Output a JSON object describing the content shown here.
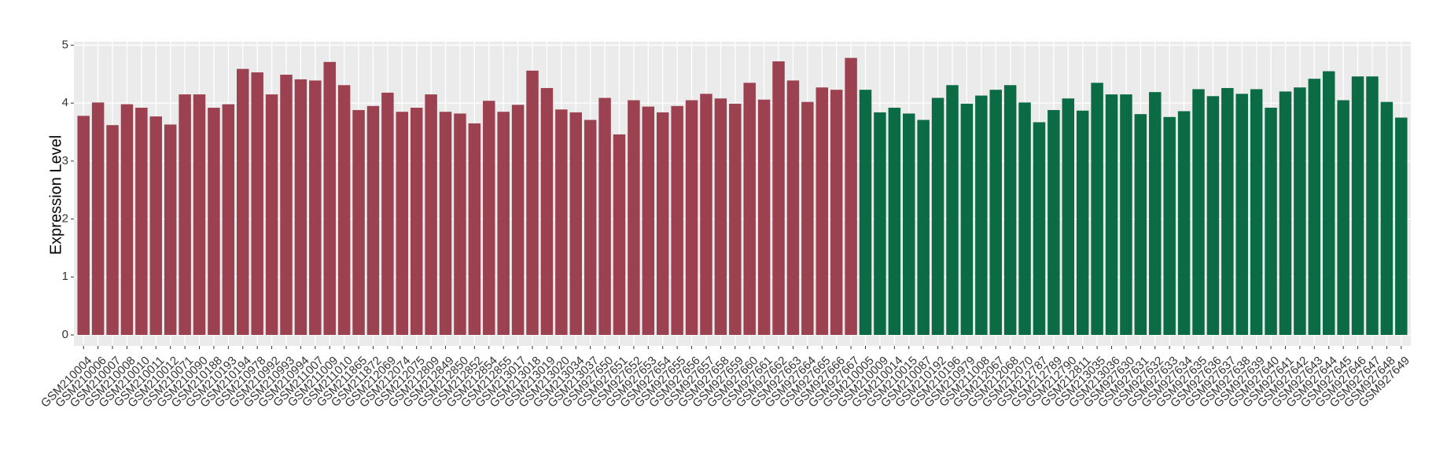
{
  "chart_data": {
    "type": "bar",
    "y_label": "Expression Level",
    "categories": [
      "GSM210004",
      "GSM210006",
      "GSM210007",
      "GSM210008",
      "GSM210010",
      "GSM210011",
      "GSM210012",
      "GSM210071",
      "GSM210090",
      "GSM210188",
      "GSM210193",
      "GSM210194",
      "GSM210978",
      "GSM210992",
      "GSM210993",
      "GSM210994",
      "GSM211007",
      "GSM211009",
      "GSM211010",
      "GSM211865",
      "GSM211872",
      "GSM212069",
      "GSM212074",
      "GSM212075",
      "GSM212809",
      "GSM212849",
      "GSM212850",
      "GSM212852",
      "GSM212854",
      "GSM212855",
      "GSM213017",
      "GSM213018",
      "GSM213019",
      "GSM213020",
      "GSM213034",
      "GSM213037",
      "GSM927650",
      "GSM927651",
      "GSM927652",
      "GSM927653",
      "GSM927654",
      "GSM927655",
      "GSM927656",
      "GSM927657",
      "GSM927658",
      "GSM927659",
      "GSM927660",
      "GSM927661",
      "GSM927662",
      "GSM927663",
      "GSM927664",
      "GSM927665",
      "GSM927666",
      "GSM927667",
      "GSM210005",
      "GSM210009",
      "GSM210014",
      "GSM210015",
      "GSM210087",
      "GSM210192",
      "GSM210196",
      "GSM210979",
      "GSM211008",
      "GSM212067",
      "GSM212068",
      "GSM212070",
      "GSM212787",
      "GSM212789",
      "GSM212790",
      "GSM212811",
      "GSM213035",
      "GSM213036",
      "GSM927630",
      "GSM927631",
      "GSM927632",
      "GSM927633",
      "GSM927634",
      "GSM927635",
      "GSM927636",
      "GSM927637",
      "GSM927638",
      "GSM927639",
      "GSM927640",
      "GSM927641",
      "GSM927642",
      "GSM927643",
      "GSM927644",
      "GSM927645",
      "GSM927646",
      "GSM927647",
      "GSM927648",
      "GSM927649"
    ],
    "values": [
      3.78,
      4.01,
      3.62,
      3.98,
      3.92,
      3.77,
      3.63,
      4.15,
      4.15,
      3.92,
      3.98,
      4.59,
      4.53,
      4.15,
      4.49,
      4.41,
      4.39,
      4.71,
      4.31,
      3.88,
      3.95,
      4.18,
      3.85,
      3.92,
      4.15,
      3.85,
      3.82,
      3.65,
      4.04,
      3.85,
      3.97,
      4.56,
      4.26,
      3.89,
      3.84,
      3.71,
      4.09,
      3.46,
      4.05,
      3.94,
      3.84,
      3.95,
      4.05,
      4.16,
      4.08,
      3.99,
      4.35,
      4.06,
      4.72,
      4.39,
      4.02,
      4.27,
      4.23,
      4.78,
      4.23,
      3.84,
      3.92,
      3.82,
      3.71,
      4.09,
      4.31,
      3.99,
      4.13,
      4.23,
      4.31,
      4.01,
      3.67,
      3.88,
      4.08,
      3.87,
      4.35,
      4.15,
      4.15,
      3.81,
      4.19,
      3.76,
      3.86,
      4.24,
      4.12,
      4.26,
      4.16,
      4.24,
      3.92,
      4.2,
      4.27,
      4.42,
      4.55,
      4.05,
      4.46,
      4.46,
      4.02,
      3.75
    ],
    "colors": [
      "#9b4150",
      "#9b4150",
      "#9b4150",
      "#9b4150",
      "#9b4150",
      "#9b4150",
      "#9b4150",
      "#9b4150",
      "#9b4150",
      "#9b4150",
      "#9b4150",
      "#9b4150",
      "#9b4150",
      "#9b4150",
      "#9b4150",
      "#9b4150",
      "#9b4150",
      "#9b4150",
      "#9b4150",
      "#9b4150",
      "#9b4150",
      "#9b4150",
      "#9b4150",
      "#9b4150",
      "#9b4150",
      "#9b4150",
      "#9b4150",
      "#9b4150",
      "#9b4150",
      "#9b4150",
      "#9b4150",
      "#9b4150",
      "#9b4150",
      "#9b4150",
      "#9b4150",
      "#9b4150",
      "#9b4150",
      "#9b4150",
      "#9b4150",
      "#9b4150",
      "#9b4150",
      "#9b4150",
      "#9b4150",
      "#9b4150",
      "#9b4150",
      "#9b4150",
      "#9b4150",
      "#9b4150",
      "#9b4150",
      "#9b4150",
      "#9b4150",
      "#9b4150",
      "#9b4150",
      "#9b4150",
      "#0b6b45",
      "#0b6b45",
      "#0b6b45",
      "#0b6b45",
      "#0b6b45",
      "#0b6b45",
      "#0b6b45",
      "#0b6b45",
      "#0b6b45",
      "#0b6b45",
      "#0b6b45",
      "#0b6b45",
      "#0b6b45",
      "#0b6b45",
      "#0b6b45",
      "#0b6b45",
      "#0b6b45",
      "#0b6b45",
      "#0b6b45",
      "#0b6b45",
      "#0b6b45",
      "#0b6b45",
      "#0b6b45",
      "#0b6b45",
      "#0b6b45",
      "#0b6b45",
      "#0b6b45",
      "#0b6b45",
      "#0b6b45",
      "#0b6b45",
      "#0b6b45",
      "#0b6b45",
      "#0b6b45",
      "#0b6b45",
      "#0b6b45",
      "#0b6b45",
      "#0b6b45",
      "#0b6b45"
    ],
    "ylim": [
      -0.19,
      5.06
    ],
    "yticks": [
      0,
      1,
      2,
      3,
      4,
      5
    ],
    "grid": true
  }
}
